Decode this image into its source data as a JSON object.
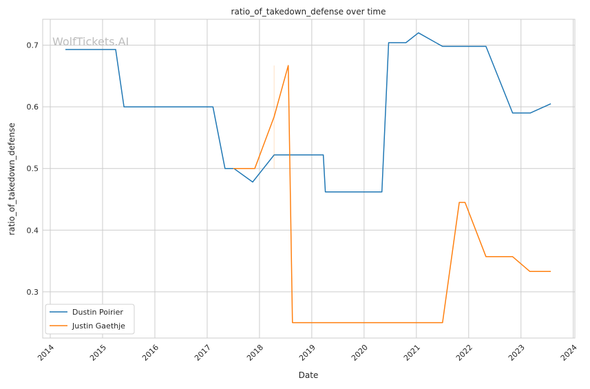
{
  "chart_data": {
    "type": "line",
    "title": "ratio_of_takedown_defense over time",
    "xlabel": "Date",
    "ylabel": "ratio_of_takedown_defense",
    "xlim": [
      2013.855,
      2024.03
    ],
    "ylim": [
      0.225,
      0.742
    ],
    "x_ticks": [
      2014,
      2015,
      2016,
      2017,
      2018,
      2019,
      2020,
      2021,
      2022,
      2023,
      2024
    ],
    "y_ticks": [
      0.3,
      0.4,
      0.5,
      0.6,
      0.7
    ],
    "y_tick_labels": [
      "0.3",
      "0.4",
      "0.5",
      "0.6",
      "0.7"
    ],
    "grid": true,
    "legend_position": "bottom-left",
    "watermark": "WolfTickets.AI",
    "series": [
      {
        "name": "Dustin Poirier",
        "color": "#1f77b4",
        "x": [
          2014.29,
          2015.25,
          2015.41,
          2017.11,
          2017.34,
          2017.51,
          2017.87,
          2018.28,
          2019.22,
          2019.26,
          2020.34,
          2020.47,
          2020.8,
          2021.04,
          2021.5,
          2022.33,
          2022.84,
          2023.18,
          2023.57
        ],
        "y": [
          0.693,
          0.693,
          0.6,
          0.6,
          0.5,
          0.5,
          0.478,
          0.522,
          0.522,
          0.462,
          0.462,
          0.704,
          0.704,
          0.72,
          0.698,
          0.698,
          0.59,
          0.59,
          0.605
        ]
      },
      {
        "name": "Justin Gaethje",
        "color": "#ff7f0e",
        "x": [
          2017.5,
          2017.91,
          2018.28,
          2018.55,
          2018.63,
          2021.5,
          2021.82,
          2021.93,
          2022.33,
          2022.84,
          2023.17,
          2023.57
        ],
        "y": [
          0.5,
          0.5,
          0.584,
          0.667,
          0.25,
          0.25,
          0.445,
          0.445,
          0.357,
          0.357,
          0.333,
          0.333
        ],
        "band": {
          "x": 2018.28,
          "y_low": 0.5,
          "y_high": 0.667
        }
      }
    ]
  }
}
